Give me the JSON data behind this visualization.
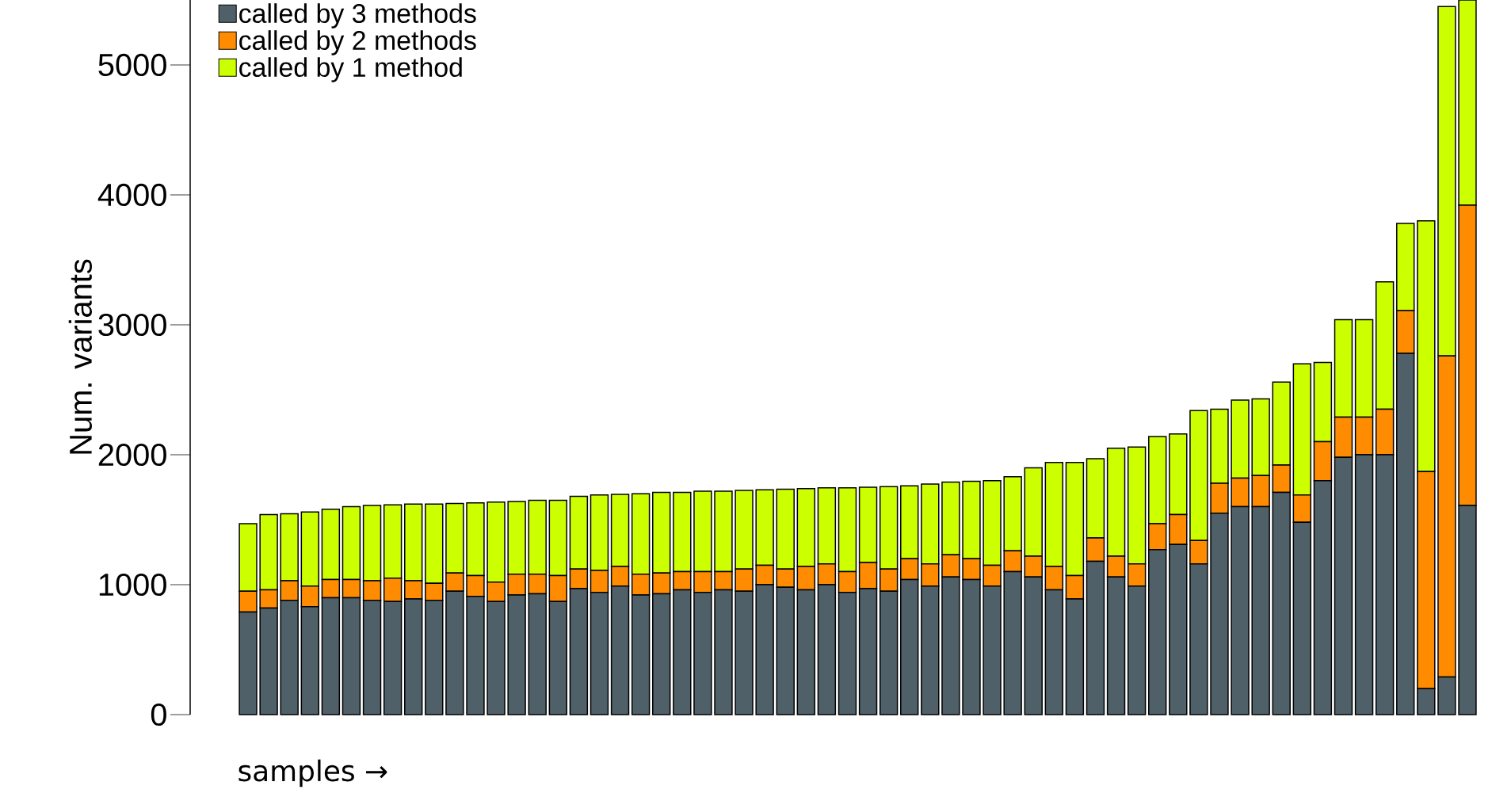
{
  "chart_data": {
    "type": "bar",
    "stacked": true,
    "ylabel": "Num. variants",
    "xlabel": "samples →",
    "categories": [
      null,
      null,
      null,
      null,
      null,
      null,
      null,
      null,
      null,
      null,
      null,
      null,
      null,
      null,
      null,
      null,
      null,
      null,
      null,
      null,
      null,
      null,
      null,
      null,
      null,
      null,
      null,
      null,
      null,
      null,
      null,
      null,
      null,
      null,
      null,
      null,
      null,
      null,
      null,
      null,
      null,
      null,
      null,
      null,
      null,
      null,
      null,
      null,
      null,
      null,
      null,
      null,
      null,
      null,
      null,
      null,
      null,
      null,
      null,
      null
    ],
    "series": [
      {
        "name": "called by 3 methods",
        "color": "#4f6068",
        "values": [
          790,
          820,
          880,
          830,
          900,
          900,
          880,
          870,
          890,
          880,
          950,
          910,
          870,
          920,
          930,
          870,
          970,
          940,
          990,
          920,
          930,
          960,
          940,
          960,
          950,
          1000,
          980,
          960,
          1000,
          940,
          970,
          950,
          1040,
          990,
          1060,
          1040,
          990,
          1100,
          1060,
          960,
          890,
          1180,
          1060,
          990,
          1270,
          1310,
          1160,
          1550,
          1600,
          1600,
          1710,
          1480,
          1800,
          1980,
          2000,
          2000,
          2780,
          200,
          290,
          1610
        ]
      },
      {
        "name": "called by 2 methods",
        "color": "#ff8c00",
        "values": [
          160,
          140,
          150,
          160,
          140,
          140,
          150,
          180,
          140,
          130,
          140,
          160,
          150,
          160,
          150,
          200,
          150,
          170,
          150,
          160,
          160,
          140,
          160,
          140,
          170,
          150,
          140,
          180,
          160,
          160,
          200,
          170,
          160,
          170,
          170,
          160,
          160,
          160,
          160,
          180,
          180,
          180,
          160,
          170,
          200,
          230,
          180,
          230,
          220,
          240,
          210,
          210,
          300,
          310,
          290,
          350,
          330,
          1670,
          2470,
          2310
        ]
      },
      {
        "name": "called by 1 method",
        "color": "#ccff00",
        "values": [
          520,
          580,
          515,
          570,
          540,
          560,
          580,
          565,
          590,
          610,
          535,
          560,
          615,
          560,
          570,
          580,
          560,
          580,
          555,
          620,
          620,
          610,
          620,
          620,
          605,
          580,
          615,
          600,
          585,
          645,
          580,
          635,
          560,
          615,
          560,
          595,
          650,
          570,
          680,
          800,
          870,
          610,
          830,
          900,
          670,
          620,
          1000,
          570,
          600,
          590,
          640,
          1010,
          610,
          750,
          750,
          980,
          670,
          1930,
          2690,
          1580
        ]
      }
    ],
    "ylim": [
      0,
      5500
    ],
    "yticks": [
      0,
      1000,
      2000,
      3000,
      4000,
      5000
    ],
    "legend": "top left"
  }
}
